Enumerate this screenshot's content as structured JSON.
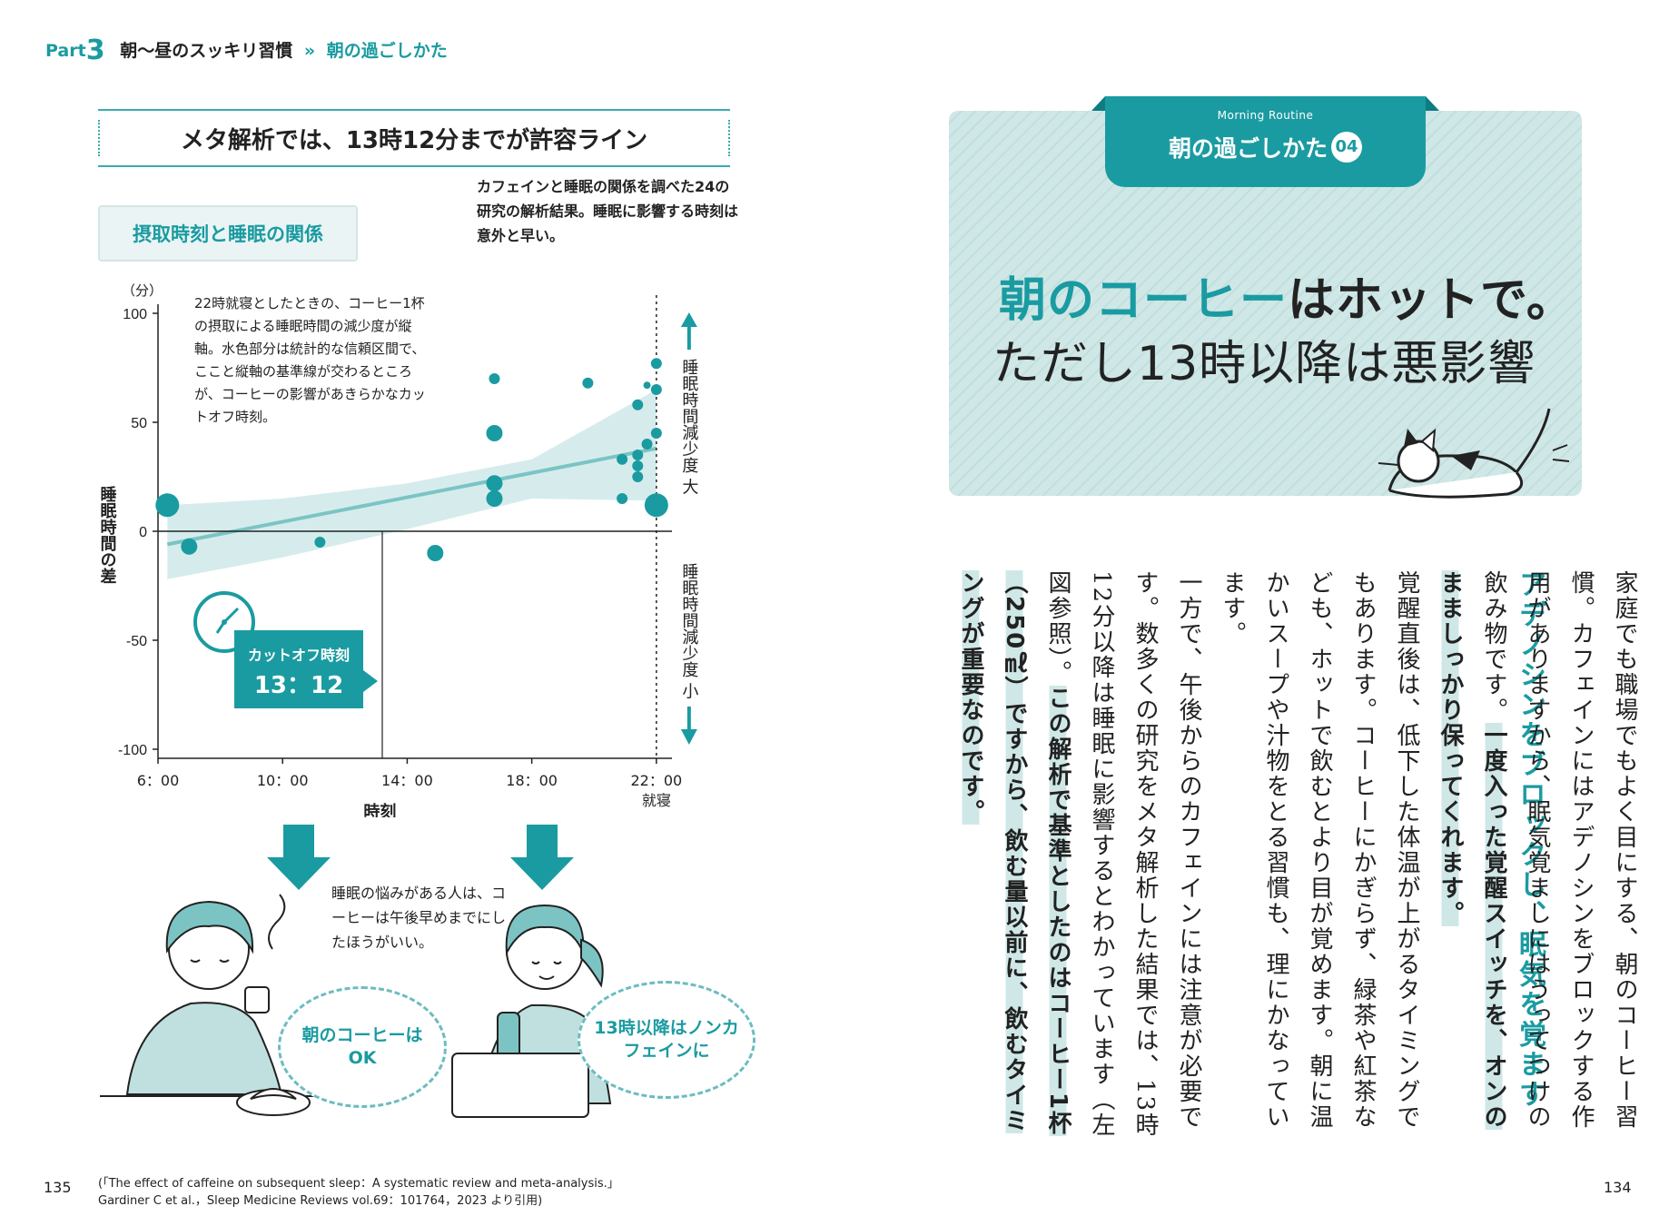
{
  "header": {
    "part_label": "Part",
    "part_number": "3",
    "section": "朝〜昼のスッキリ習慣",
    "separator": "»",
    "subsection": "朝の過ごしかた"
  },
  "left_page": {
    "heading": "メタ解析では、13時12分までが許容ライン",
    "description": "カフェインと睡眠の関係を調べた24の研究の解析結果。睡眠に影響する時刻は意外と早い。",
    "relation_label": "摂取時刻と睡眠の関係",
    "chart_note": "22時就寝としたときの、コーヒー1杯の摂取による睡眠時間の減少度が縦軸。水色部分は統計的な信頼区間で、ここと縦軸の基準線が交わるところが、コーヒーの影響があきらかなカットオフ時刻。",
    "cutoff_label": "カットオフ時刻",
    "cutoff_time": "13：12",
    "caption": "睡眠の悩みがある人は、コーヒーは午後早めまでにしたほうがいい。",
    "bubble_left": "朝のコーヒーはOK",
    "bubble_right": "13時以降はノンカフェインに",
    "page_number": "135",
    "citation_line1": "(「The effect of caffeine on subsequent sleep：A systematic review and meta-analysis.」",
    "citation_line2": "Gardiner C et al.，Sleep Medicine Reviews vol.69：101764，2023 より引用)"
  },
  "chart_data": {
    "type": "scatter",
    "title": "摂取時刻と睡眠の関係",
    "xlabel": "時刻",
    "ylabel": "睡眠時間の差",
    "yunit": "（分）",
    "xlim": [
      6,
      22.5
    ],
    "ylim": [
      -100,
      100
    ],
    "xticks": [
      6,
      10,
      14,
      18,
      22
    ],
    "xtick_labels": [
      "6：00",
      "10：00",
      "14：00",
      "18：00",
      "22：00"
    ],
    "xtick_sub": "就寝",
    "yticks": [
      100,
      50,
      0,
      -50,
      -100
    ],
    "ytick_labels": [
      "100",
      "50",
      "0",
      "-50",
      "-100"
    ],
    "legend_top": "睡眠時間減少度 大",
    "legend_bottom": "睡眠時間減少度 小",
    "cutoff_x": 13.2,
    "points": [
      {
        "x": 6.3,
        "y": 12,
        "size": 3
      },
      {
        "x": 7.0,
        "y": -7,
        "size": 2
      },
      {
        "x": 11.2,
        "y": -5,
        "size": 1
      },
      {
        "x": 14.9,
        "y": -10,
        "size": 2
      },
      {
        "x": 16.8,
        "y": 70,
        "size": 1
      },
      {
        "x": 16.8,
        "y": 45,
        "size": 2
      },
      {
        "x": 16.8,
        "y": 22,
        "size": 2
      },
      {
        "x": 16.8,
        "y": 15,
        "size": 2
      },
      {
        "x": 19.8,
        "y": 68,
        "size": 1
      },
      {
        "x": 20.9,
        "y": 33,
        "size": 1
      },
      {
        "x": 20.9,
        "y": 15,
        "size": 1
      },
      {
        "x": 21.4,
        "y": 58,
        "size": 1
      },
      {
        "x": 21.4,
        "y": 35,
        "size": 1
      },
      {
        "x": 21.4,
        "y": 30,
        "size": 1
      },
      {
        "x": 21.4,
        "y": 25,
        "size": 1
      },
      {
        "x": 21.7,
        "y": 67,
        "size": 0
      },
      {
        "x": 21.7,
        "y": 40,
        "size": 1
      },
      {
        "x": 22.0,
        "y": 77,
        "size": 1
      },
      {
        "x": 22.0,
        "y": 65,
        "size": 1
      },
      {
        "x": 22.0,
        "y": 45,
        "size": 1
      },
      {
        "x": 22.0,
        "y": 12,
        "size": 3
      }
    ],
    "trend": {
      "x": [
        6.3,
        22.0
      ],
      "y": [
        -6,
        38
      ]
    },
    "band_upper": {
      "x": [
        6.3,
        10,
        14,
        18,
        22
      ],
      "y": [
        12,
        15,
        22,
        33,
        65
      ]
    },
    "band_lower": {
      "x": [
        6.3,
        10,
        14,
        18,
        22
      ],
      "y": [
        -22,
        -12,
        1,
        15,
        14
      ]
    }
  },
  "right_page": {
    "tab_small": "Morning Routine",
    "tab_title": "朝の過ごしかた",
    "tab_badge": "04",
    "title_line1_highlight": "朝のコーヒー",
    "title_line1_rest": "はホットで。",
    "title_line2": "ただし13時以降は悪影響",
    "subheading": "アデノシンをブロックし、眠気を覚ます",
    "body_1": "家庭でも職場でもよく目にする、朝のコーヒー習慣。カフェインにはアデノシンをブロックする作用がありますから、眠気覚ましにはうってつけの飲み物です。",
    "body_2": "一度入った覚醒スイッチを、オンのまましっかり保ってくれます。",
    "body_3": "覚醒直後は、低下した体温が上がるタイミングでもあります。コーヒーにかぎらず、緑茶や紅茶なども、ホットで飲むとより目が覚めます。朝に温かいスープや汁物をとる習慣も、理にかなっています。",
    "body_4": "一方で、午後からのカフェインには注意が必要です。数多くの研究をメタ解析した結果では、13時12分以降は睡眠に影響するとわかっています（左図参照）。",
    "body_5": "この解析で基準としたのはコーヒー1杯（250㎖）ですから、飲む量以前に、飲むタイミングが重要なのです。",
    "page_number": "134"
  }
}
